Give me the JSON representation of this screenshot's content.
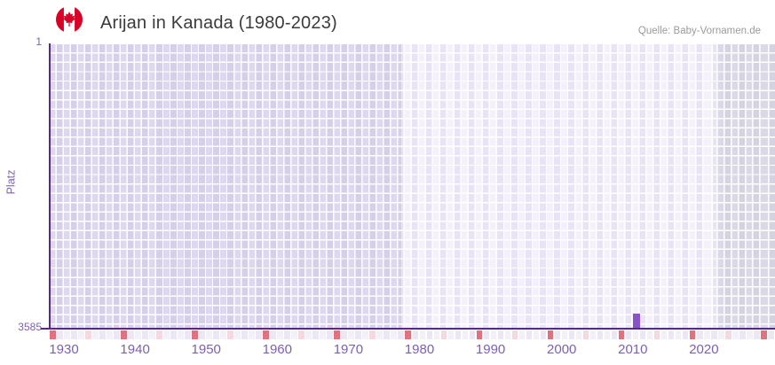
{
  "header": {
    "title": "Arijan in Kanada (1980-2023)",
    "source": "Quelle: Baby-Vornamen.de",
    "flag": "canada"
  },
  "chart_data": {
    "type": "bar",
    "title": "Arijan in Kanada (1980-2023)",
    "xlabel": "",
    "ylabel": "Platz",
    "y_inverted": true,
    "ylim": [
      1,
      3585
    ],
    "y_ticks": [
      "1",
      "3585"
    ],
    "x_ticks": [
      1930,
      1940,
      1950,
      1960,
      1970,
      1980,
      1990,
      2000,
      2010,
      2020
    ],
    "x_range": [
      1928,
      2030
    ],
    "points": [
      {
        "year": 2010,
        "rank": 3585
      }
    ],
    "colors": {
      "bar": "#8952c5",
      "axis": "#532b87",
      "tick_label": "#7d5fb5",
      "title_text": "#3b3b3b",
      "source_text": "#9b9b9b",
      "marker_red": "#e0717e",
      "marker_pink": "#f4d9e0",
      "flag_red": "#d80027"
    },
    "eras": [
      {
        "from": 1928,
        "to": 1977.5,
        "light": "#ddd8ed",
        "dark": "#d5cfe8"
      },
      {
        "from": 1977.5,
        "to": 2021.8,
        "light": "#f4f1fb",
        "dark": "#e9e4f5"
      },
      {
        "from": 2021.8,
        "to": 2030,
        "light": "#dcd9e6",
        "dark": "#d5d2e1"
      }
    ],
    "strip": {
      "red_years": [
        1928,
        1938,
        1948,
        1958,
        1968,
        1978,
        1988,
        1998,
        2008,
        2018,
        2028
      ],
      "pink_years": [
        1933,
        1943,
        1953,
        1963,
        1973,
        1983,
        1993,
        2003,
        2013,
        2023
      ],
      "base_even": "#f3f0fa",
      "base_odd": "#ebe7f5"
    }
  }
}
